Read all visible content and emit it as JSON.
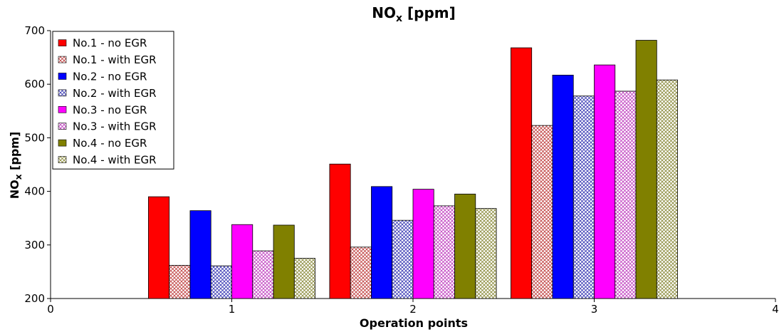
{
  "chart_data": {
    "type": "bar",
    "title_main": "NO",
    "title_sub": "x",
    "title_unit": " [ppm]",
    "xlabel": "Operation points",
    "ylabel_main": "NO",
    "ylabel_sub": "x",
    "ylabel_unit": " [ppm]",
    "xlim": [
      0,
      4
    ],
    "ylim": [
      200,
      700
    ],
    "xticks": [
      "0",
      "1",
      "2",
      "3",
      "4"
    ],
    "yticks": [
      "200",
      "300",
      "400",
      "500",
      "600",
      "700"
    ],
    "x": [
      1,
      2,
      3
    ],
    "legend_position": "top-left",
    "series": [
      {
        "name": "No.1 - no EGR",
        "values": [
          390,
          451,
          668
        ],
        "color": "#ff0000",
        "pattern": "solid"
      },
      {
        "name": "No.1 - with EGR",
        "values": [
          262,
          296,
          523
        ],
        "color": "#c04040",
        "pattern": "hatch"
      },
      {
        "name": "No.2 - no EGR",
        "values": [
          364,
          409,
          617
        ],
        "color": "#0000ff",
        "pattern": "solid"
      },
      {
        "name": "No.2 - with EGR",
        "values": [
          261,
          346,
          578
        ],
        "color": "#3a3ab4",
        "pattern": "hatch"
      },
      {
        "name": "No.3 - no EGR",
        "values": [
          338,
          404,
          636
        ],
        "color": "#ff00ff",
        "pattern": "solid"
      },
      {
        "name": "No.3 - with EGR",
        "values": [
          289,
          373,
          587
        ],
        "color": "#c040c0",
        "pattern": "hatch"
      },
      {
        "name": "No.4 - no EGR",
        "values": [
          337,
          395,
          682
        ],
        "color": "#808000",
        "pattern": "solid"
      },
      {
        "name": "No.4 - with EGR",
        "values": [
          275,
          368,
          608
        ],
        "color": "#8a8a3a",
        "pattern": "hatch"
      }
    ]
  }
}
